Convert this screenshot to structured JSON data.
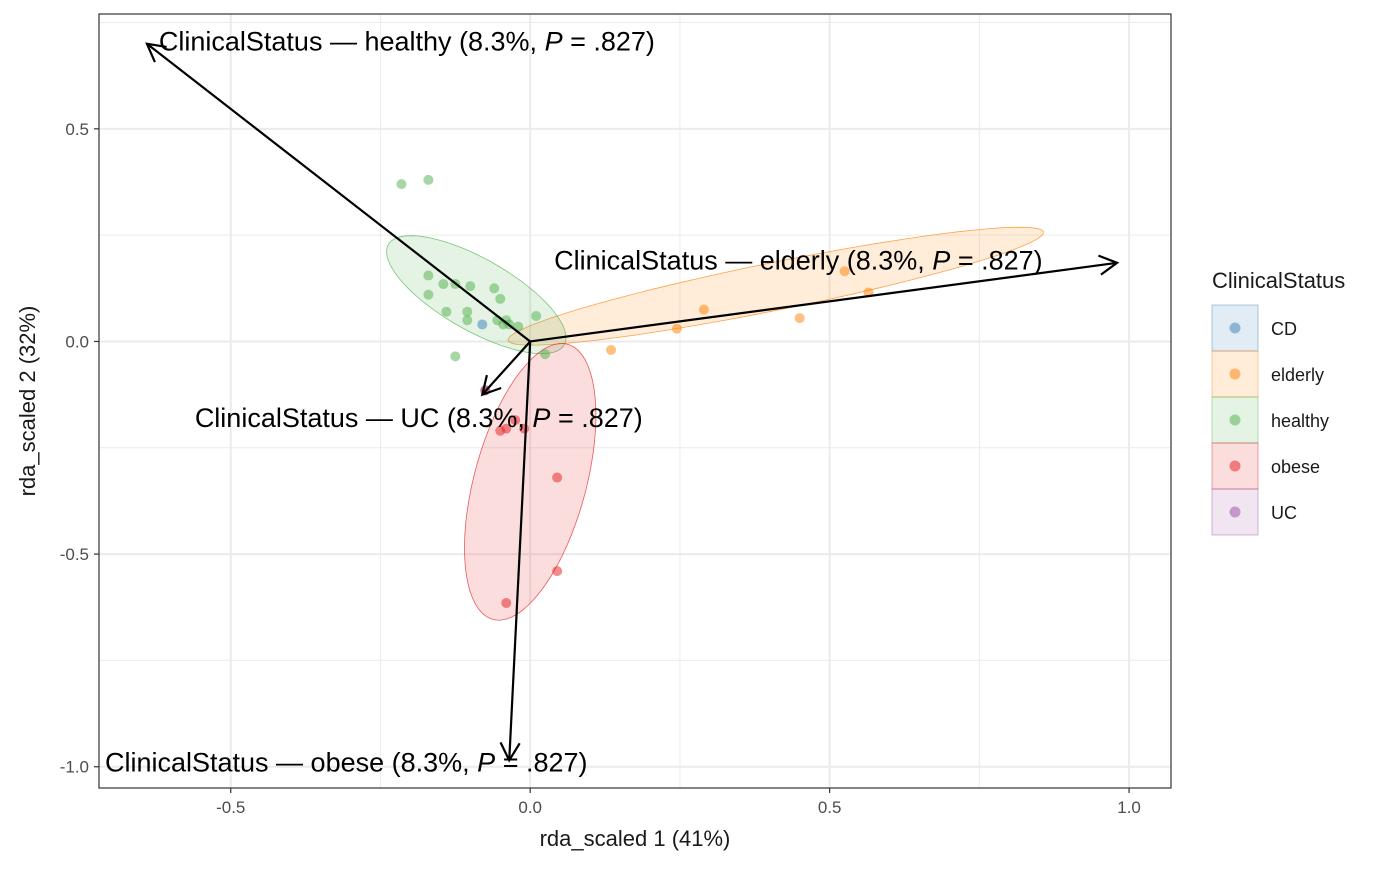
{
  "chart_data": {
    "type": "scatter",
    "subtype": "RDA triplot with group ellipses and constraint arrows",
    "xlabel": "rda_scaled 1 (41%)",
    "ylabel": "rda_scaled 2 (32%)",
    "xlim": [
      -0.72,
      1.07
    ],
    "ylim": [
      -1.05,
      0.77
    ],
    "x_ticks": [
      -0.5,
      0.0,
      0.5,
      1.0
    ],
    "x_tick_labels": [
      "-0.5",
      "0.0",
      "0.5",
      "1.0"
    ],
    "y_ticks": [
      -1.0,
      -0.5,
      0.0,
      0.5
    ],
    "y_tick_labels": [
      "-1.0",
      "-0.5",
      "0.0",
      "0.5"
    ],
    "grid": true,
    "legend": {
      "title": "ClinicalStatus",
      "position": "right",
      "entries": [
        {
          "label": "CD",
          "color": "#377EB8"
        },
        {
          "label": "elderly",
          "color": "#FF7F00"
        },
        {
          "label": "healthy",
          "color": "#4DAF4A"
        },
        {
          "label": "obese",
          "color": "#E41A1C"
        },
        {
          "label": "UC",
          "color": "#984EA3"
        }
      ]
    },
    "series": [
      {
        "name": "CD",
        "color": "#377EB8",
        "points": [
          [
            -0.08,
            0.04
          ]
        ]
      },
      {
        "name": "elderly",
        "color": "#FF7F00",
        "points": [
          [
            0.135,
            -0.02
          ],
          [
            0.245,
            0.03
          ],
          [
            0.29,
            0.075
          ],
          [
            0.45,
            0.055
          ],
          [
            0.525,
            0.165
          ],
          [
            0.565,
            0.115
          ]
        ],
        "ellipse": {
          "cx": 0.41,
          "cy": 0.13,
          "rx": 0.465,
          "ry": 0.055,
          "angle_deg": 16
        }
      },
      {
        "name": "healthy",
        "color": "#4DAF4A",
        "points": [
          [
            -0.215,
            0.37
          ],
          [
            -0.17,
            0.38
          ],
          [
            -0.17,
            0.155
          ],
          [
            -0.17,
            0.11
          ],
          [
            -0.145,
            0.135
          ],
          [
            -0.125,
            0.135
          ],
          [
            -0.1,
            0.13
          ],
          [
            -0.105,
            0.07
          ],
          [
            -0.105,
            0.05
          ],
          [
            -0.14,
            0.07
          ],
          [
            -0.06,
            0.125
          ],
          [
            -0.05,
            0.1
          ],
          [
            -0.055,
            0.05
          ],
          [
            -0.04,
            0.05
          ],
          [
            -0.035,
            0.04
          ],
          [
            -0.045,
            0.04
          ],
          [
            -0.02,
            0.035
          ],
          [
            0.01,
            0.06
          ],
          [
            0.025,
            -0.03
          ],
          [
            -0.125,
            -0.035
          ]
        ],
        "ellipse": {
          "cx": -0.09,
          "cy": 0.11,
          "rx": 0.19,
          "ry": 0.075,
          "angle_deg": -42
        }
      },
      {
        "name": "obese",
        "color": "#E41A1C",
        "points": [
          [
            -0.075,
            -0.115
          ],
          [
            -0.025,
            -0.185
          ],
          [
            -0.04,
            -0.205
          ],
          [
            -0.05,
            -0.21
          ],
          [
            -0.01,
            -0.205
          ],
          [
            0.045,
            -0.32
          ],
          [
            0.045,
            -0.54
          ],
          [
            -0.04,
            -0.615
          ]
        ],
        "ellipse": {
          "cx": 0.0,
          "cy": -0.33,
          "rx": 0.33,
          "ry": 0.095,
          "angle_deg": 80
        }
      },
      {
        "name": "UC",
        "color": "#984EA3",
        "points": [
          [
            -0.075,
            -0.115
          ]
        ]
      }
    ],
    "arrows": [
      {
        "x": -0.64,
        "y": 0.7,
        "label_main": "ClinicalStatus — healthy (8.3%, ",
        "label_p": "P",
        "label_tail": " = .827)",
        "label_x": -0.62,
        "label_y": 0.705,
        "anchor": "start"
      },
      {
        "x": 0.98,
        "y": 0.185,
        "label_main": "ClinicalStatus — elderly (8.3%, ",
        "label_p": "P",
        "label_tail": " = .827)",
        "label_x": 0.04,
        "label_y": 0.19,
        "anchor": "start"
      },
      {
        "x": -0.08,
        "y": -0.125,
        "label_main": "ClinicalStatus — UC (8.3%, ",
        "label_p": "P",
        "label_tail": " = .827)",
        "label_x": -0.56,
        "label_y": -0.18,
        "anchor": "start"
      },
      {
        "x": -0.035,
        "y": -0.985,
        "label_main": "ClinicalStatus — obese (8.3%, ",
        "label_p": "P",
        "label_tail": " = .827)",
        "label_x": -0.71,
        "label_y": -0.99,
        "anchor": "start"
      }
    ]
  }
}
